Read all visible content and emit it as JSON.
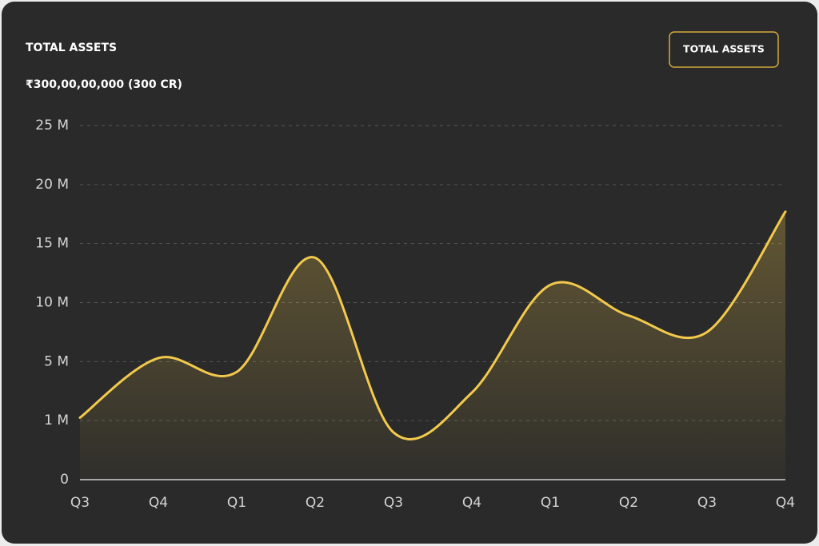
{
  "chart_data": {
    "type": "area-line",
    "title": "TOTAL ASSETS",
    "subtitle": "₹300,00,00,000 (300 CR)",
    "categories": [
      "Q3",
      "Q4",
      "Q1",
      "Q2",
      "Q3",
      "Q4",
      "Q1",
      "Q2",
      "Q3",
      "Q4"
    ],
    "series": [
      {
        "name": "TOTAL ASSETS",
        "color": "#f2c94c",
        "values": [
          1.2,
          5.3,
          4.3,
          13.8,
          0.8,
          2.9,
          11.5,
          8.9,
          7.5,
          17.7
        ]
      }
    ],
    "ylim": [
      0,
      25
    ],
    "yticks": [
      0,
      {
        "value": 1,
        "label": "1 M"
      },
      {
        "value": 5,
        "label": "5 M"
      },
      {
        "value": 10,
        "label": "10 M"
      },
      {
        "value": 15,
        "label": "15 M"
      },
      {
        "value": 20,
        "label": "20 M"
      },
      {
        "value": 25,
        "label": "25 M"
      }
    ],
    "grid": true
  }
}
